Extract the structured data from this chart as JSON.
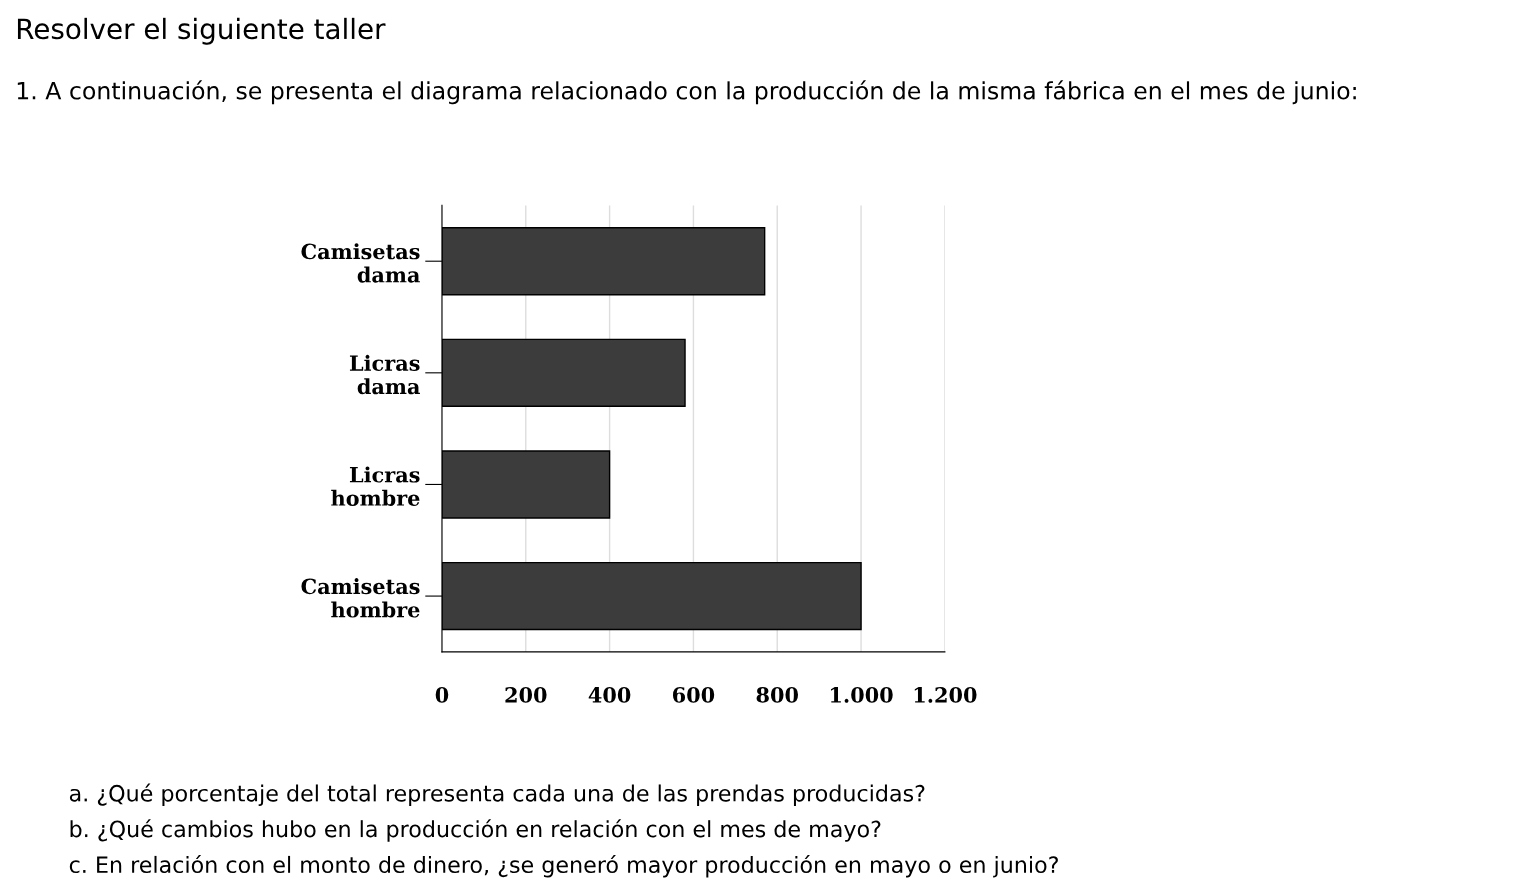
{
  "chart_data": {
    "type": "bar",
    "orientation": "horizontal",
    "title": "Resolver el siguiente taller",
    "subtitle": "1. A continuación, se presenta el diagrama relacionado con la producción de la misma fábrica en el mes de junio:",
    "categories": [
      "Camisetas\ndama",
      "Licras\ndama",
      "Licras\nhombre",
      "Camisetas\nhombre"
    ],
    "values": [
      770,
      580,
      400,
      1000
    ],
    "color": "#3c3c3c",
    "xlim": [
      0,
      1200
    ],
    "xticks": [
      0,
      200,
      400,
      600,
      800,
      {
        "value": 1000,
        "label": "1.000"
      },
      {
        "value": 1200,
        "label": "1.200"
      }
    ],
    "grid": "x",
    "annotations": [
      "a. ¿Qué porcentaje del total representa cada una de las prendas producidas?",
      "b. ¿Qué cambios hubo en la producción en relación con el mes de mayo?",
      "c. En relación con el monto de dinero, ¿se generó mayor producción en mayo o en junio?"
    ]
  }
}
